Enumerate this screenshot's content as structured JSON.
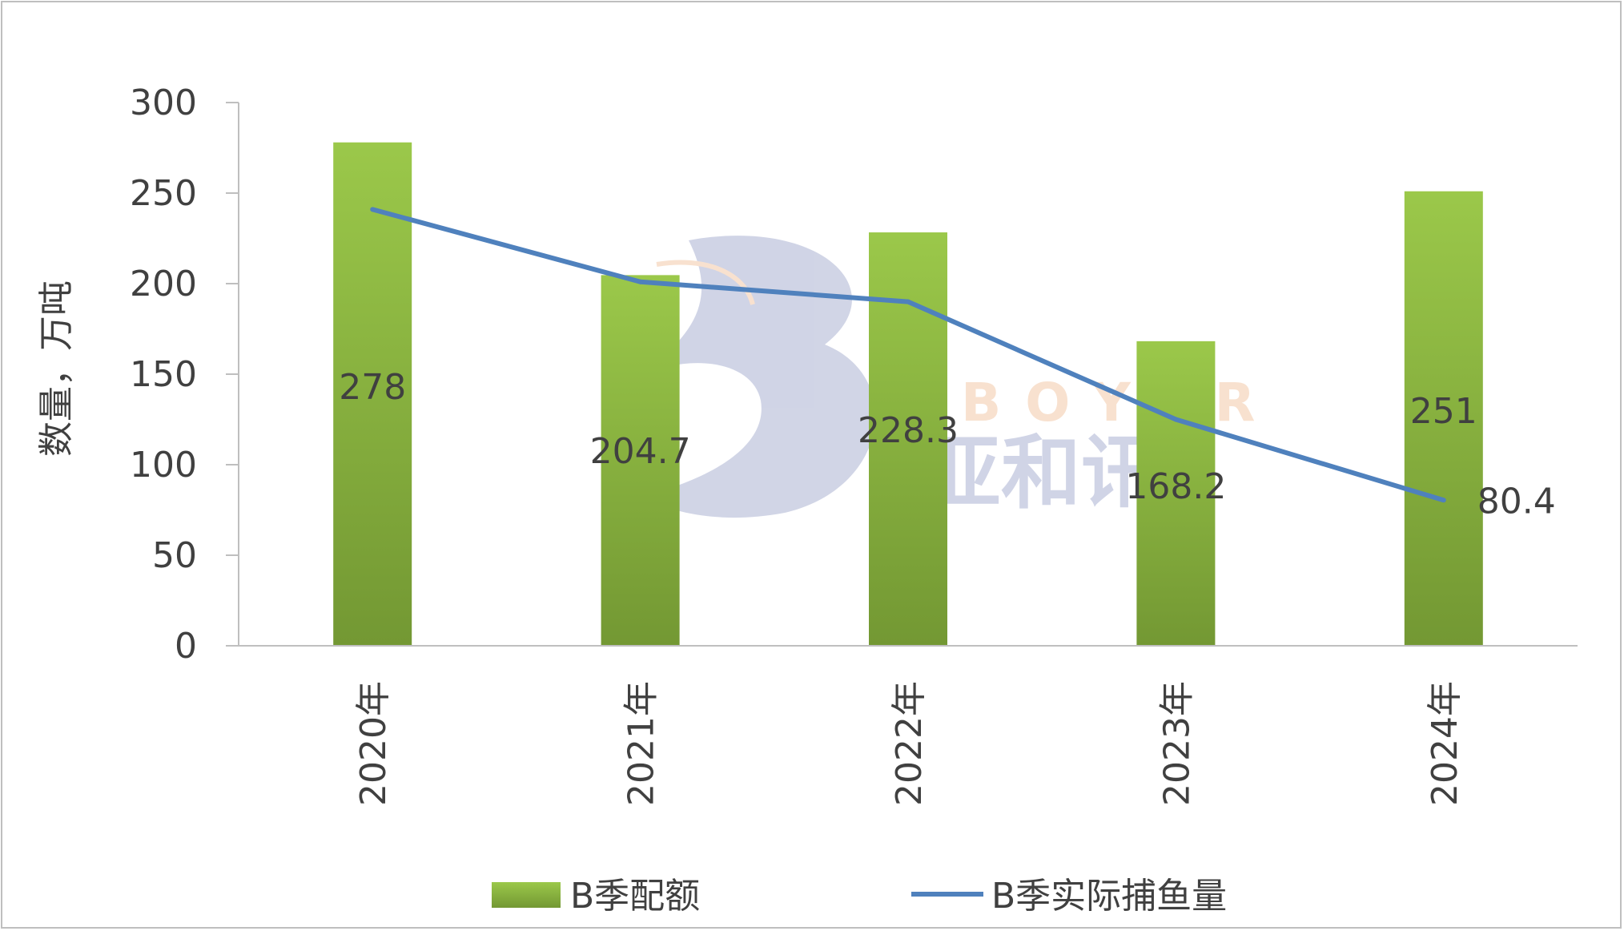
{
  "chart_data": {
    "type": "bar",
    "categories": [
      "2020年",
      "2021年",
      "2022年",
      "2023年",
      "2024年"
    ],
    "series": [
      {
        "name": "B季配额",
        "kind": "bar",
        "values": [
          278,
          204.7,
          228.3,
          168.2,
          251
        ],
        "color": "#8bb63d"
      },
      {
        "name": "B季实际捕鱼量",
        "kind": "line",
        "values": [
          241,
          201,
          190,
          125,
          80.4
        ],
        "color": "#4f81bd",
        "labels": [
          null,
          null,
          null,
          null,
          "80.4"
        ]
      }
    ],
    "bar_labels": [
      "278",
      "204.7",
      "228.3",
      "168.2",
      "251"
    ],
    "ylabel": "数量，万吨",
    "ylim": [
      0,
      300
    ],
    "yticks": [
      "0",
      "50",
      "100",
      "150",
      "200",
      "250",
      "300"
    ],
    "grid": false,
    "legend": "bottom"
  },
  "watermark": {
    "brand": "BOYAR",
    "text": "亚和讯",
    "note": "logo watermark"
  }
}
